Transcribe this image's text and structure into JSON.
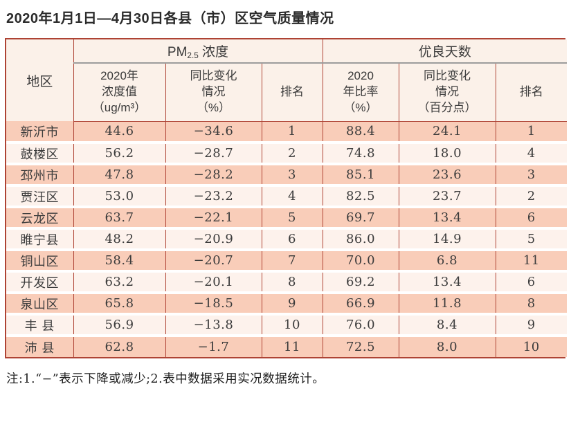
{
  "title": "2020年1月1日—4月30日各县（市）区空气质量情况",
  "table": {
    "region_header": "地区",
    "group_pm": {
      "prefix": "PM",
      "sub": "2.5",
      "suffix": " 浓度"
    },
    "group_good_days": "优良天数",
    "subheaders": {
      "pm_value": "2020年\n浓度值\n（ug/m³）",
      "pm_change": "同比变化\n情况\n（%）",
      "pm_rank": "排名",
      "good_ratio": "2020\n年比率\n（%）",
      "good_change": "同比变化\n情况\n（百分点）",
      "good_rank": "排名"
    },
    "columns": [
      "region",
      "pm_value",
      "pm_change",
      "pm_rank",
      "good_ratio",
      "good_change",
      "good_rank"
    ],
    "rows": [
      {
        "region": "新沂市",
        "pm_value": "44.6",
        "pm_change": "−34.6",
        "pm_rank": "1",
        "good_ratio": "88.4",
        "good_change": "24.1",
        "good_rank": "1"
      },
      {
        "region": "鼓楼区",
        "pm_value": "56.2",
        "pm_change": "−28.7",
        "pm_rank": "2",
        "good_ratio": "74.8",
        "good_change": "18.0",
        "good_rank": "4"
      },
      {
        "region": "邳州市",
        "pm_value": "47.8",
        "pm_change": "−28.2",
        "pm_rank": "3",
        "good_ratio": "85.1",
        "good_change": "23.6",
        "good_rank": "3"
      },
      {
        "region": "贾汪区",
        "pm_value": "53.0",
        "pm_change": "−23.2",
        "pm_rank": "4",
        "good_ratio": "82.5",
        "good_change": "23.7",
        "good_rank": "2"
      },
      {
        "region": "云龙区",
        "pm_value": "63.7",
        "pm_change": "−22.1",
        "pm_rank": "5",
        "good_ratio": "69.7",
        "good_change": "13.4",
        "good_rank": "6"
      },
      {
        "region": "睢宁县",
        "pm_value": "48.2",
        "pm_change": "−20.9",
        "pm_rank": "6",
        "good_ratio": "86.0",
        "good_change": "14.9",
        "good_rank": "5"
      },
      {
        "region": "铜山区",
        "pm_value": "58.4",
        "pm_change": "−20.7",
        "pm_rank": "7",
        "good_ratio": "70.0",
        "good_change": "6.8",
        "good_rank": "11"
      },
      {
        "region": "开发区",
        "pm_value": "63.2",
        "pm_change": "−20.1",
        "pm_rank": "8",
        "good_ratio": "69.2",
        "good_change": "13.4",
        "good_rank": "6"
      },
      {
        "region": "泉山区",
        "pm_value": "65.8",
        "pm_change": "−18.5",
        "pm_rank": "9",
        "good_ratio": "66.9",
        "good_change": "11.8",
        "good_rank": "8"
      },
      {
        "region": "丰 县",
        "pm_value": "56.9",
        "pm_change": "−13.8",
        "pm_rank": "10",
        "good_ratio": "76.0",
        "good_change": "8.4",
        "good_rank": "9"
      },
      {
        "region": "沛 县",
        "pm_value": "62.8",
        "pm_change": "−1.7",
        "pm_rank": "11",
        "good_ratio": "72.5",
        "good_change": "8.0",
        "good_rank": "10"
      }
    ]
  },
  "footnote": "注:1.“−”表示下降或减少;2.表中数据采用实况数据统计。",
  "colors": {
    "border_red": "#ae4334",
    "row_salmon": "#f9cdb9",
    "row_light": "#fdf2ec",
    "header_bg": "#fbf1e9",
    "gray_rule": "#9c9c9c",
    "text": "#3c3c3c"
  }
}
